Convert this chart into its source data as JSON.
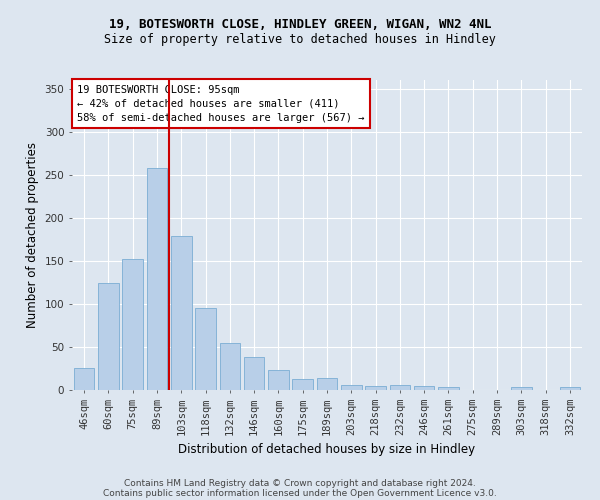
{
  "title": "19, BOTESWORTH CLOSE, HINDLEY GREEN, WIGAN, WN2 4NL",
  "subtitle": "Size of property relative to detached houses in Hindley",
  "xlabel": "Distribution of detached houses by size in Hindley",
  "ylabel": "Number of detached properties",
  "categories": [
    "46sqm",
    "60sqm",
    "75sqm",
    "89sqm",
    "103sqm",
    "118sqm",
    "132sqm",
    "146sqm",
    "160sqm",
    "175sqm",
    "189sqm",
    "203sqm",
    "218sqm",
    "232sqm",
    "246sqm",
    "261sqm",
    "275sqm",
    "289sqm",
    "303sqm",
    "318sqm",
    "332sqm"
  ],
  "values": [
    25,
    124,
    152,
    258,
    179,
    95,
    55,
    38,
    23,
    13,
    14,
    6,
    5,
    6,
    5,
    4,
    0,
    0,
    3,
    0,
    3
  ],
  "bar_color": "#b8cfe8",
  "bar_edge_color": "#7aadd4",
  "property_line_x": 3.5,
  "property_line_color": "#cc0000",
  "annotation_text": "19 BOTESWORTH CLOSE: 95sqm\n← 42% of detached houses are smaller (411)\n58% of semi-detached houses are larger (567) →",
  "annotation_box_facecolor": "#ffffff",
  "annotation_box_edgecolor": "#cc0000",
  "ylim": [
    0,
    360
  ],
  "yticks": [
    0,
    50,
    100,
    150,
    200,
    250,
    300,
    350
  ],
  "background_color": "#dde6f0",
  "grid_color": "#ffffff",
  "footer_line1": "Contains HM Land Registry data © Crown copyright and database right 2024.",
  "footer_line2": "Contains public sector information licensed under the Open Government Licence v3.0.",
  "title_fontsize": 9,
  "subtitle_fontsize": 8.5,
  "ylabel_fontsize": 8.5,
  "xlabel_fontsize": 8.5,
  "tick_fontsize": 7.5,
  "annotation_fontsize": 7.5,
  "footer_fontsize": 6.5
}
